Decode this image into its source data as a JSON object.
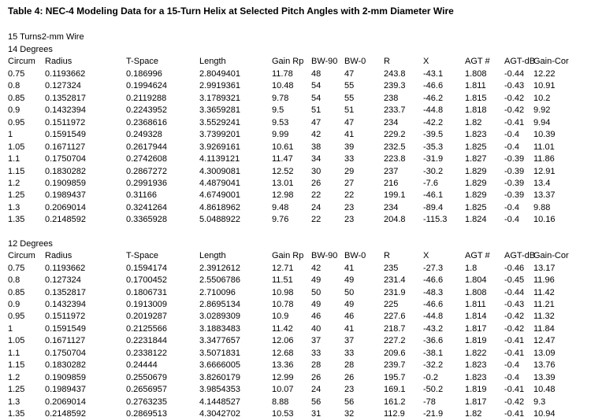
{
  "page": {
    "background_color": "#ffffff",
    "text_color": "#000000"
  },
  "document": {
    "title": "Table 4: NEC-4 Modeling Data for a 15-Turn Helix at Selected Pitch Angles with 2-mm Diameter Wire",
    "turns_label": "15 Turns",
    "wire_label": "2-mm Wire",
    "columns": [
      "Circum",
      "Radius",
      "T-Space",
      "Length",
      "Gain Rp",
      "BW-90",
      "BW-0",
      "R",
      "X",
      "AGT #",
      "AGT-dB",
      "Gain-Cor"
    ],
    "sections": [
      {
        "label": "14 Degrees",
        "rows": [
          [
            "0.75",
            "0.1193662",
            "0.186996",
            "2.8049401",
            "11.78",
            "48",
            "47",
            "243.8",
            "-43.1",
            "1.808",
            "-0.44",
            "12.22"
          ],
          [
            "0.8",
            "0.127324",
            "0.1994624",
            "2.9919361",
            "10.48",
            "54",
            "55",
            "239.3",
            "-46.6",
            "1.811",
            "-0.43",
            "10.91"
          ],
          [
            "0.85",
            "0.1352817",
            "0.2119288",
            "3.1789321",
            "9.78",
            "54",
            "55",
            "238",
            "-46.2",
            "1.815",
            "-0.42",
            "10.2"
          ],
          [
            "0.9",
            "0.1432394",
            "0.2243952",
            "3.3659281",
            "9.5",
            "51",
            "51",
            "233.7",
            "-44.8",
            "1.818",
            "-0.42",
            "9.92"
          ],
          [
            "0.95",
            "0.1511972",
            "0.2368616",
            "3.5529241",
            "9.53",
            "47",
            "47",
            "234",
            "-42.2",
            "1.82",
            "-0.41",
            "9.94"
          ],
          [
            "1",
            "0.1591549",
            "0.249328",
            "3.7399201",
            "9.99",
            "42",
            "41",
            "229.2",
            "-39.5",
            "1.823",
            "-0.4",
            "10.39"
          ],
          [
            "1.05",
            "0.1671127",
            "0.2617944",
            "3.9269161",
            "10.61",
            "38",
            "39",
            "232.5",
            "-35.3",
            "1.825",
            "-0.4",
            "11.01"
          ],
          [
            "1.1",
            "0.1750704",
            "0.2742608",
            "4.1139121",
            "11.47",
            "34",
            "33",
            "223.8",
            "-31.9",
            "1.827",
            "-0.39",
            "11.86"
          ],
          [
            "1.15",
            "0.1830282",
            "0.2867272",
            "4.3009081",
            "12.52",
            "30",
            "29",
            "237",
            "-30.2",
            "1.829",
            "-0.39",
            "12.91"
          ],
          [
            "1.2",
            "0.1909859",
            "0.2991936",
            "4.4879041",
            "13.01",
            "26",
            "27",
            "216",
            "-7.6",
            "1.829",
            "-0.39",
            "13.4"
          ],
          [
            "1.25",
            "0.1989437",
            "0.31166",
            "4.6749001",
            "12.98",
            "22",
            "22",
            "199.1",
            "-46.1",
            "1.829",
            "-0.39",
            "13.37"
          ],
          [
            "1.3",
            "0.2069014",
            "0.3241264",
            "4.8618962",
            "9.48",
            "24",
            "23",
            "234",
            "-89.4",
            "1.825",
            "-0.4",
            "9.88"
          ],
          [
            "1.35",
            "0.2148592",
            "0.3365928",
            "5.0488922",
            "9.76",
            "22",
            "23",
            "204.8",
            "-115.3",
            "1.824",
            "-0.4",
            "10.16"
          ]
        ]
      },
      {
        "label": "12 Degrees",
        "rows": [
          [
            "0.75",
            "0.1193662",
            "0.1594174",
            "2.3912612",
            "12.71",
            "42",
            "41",
            "235",
            "-27.3",
            "1.8",
            "-0.46",
            "13.17"
          ],
          [
            "0.8",
            "0.127324",
            "0.1700452",
            "2.5506786",
            "11.51",
            "49",
            "49",
            "231.4",
            "-46.6",
            "1.804",
            "-0.45",
            "11.96"
          ],
          [
            "0.85",
            "0.1352817",
            "0.1806731",
            "2.710096",
            "10.98",
            "50",
            "50",
            "231.9",
            "-48.3",
            "1.808",
            "-0.44",
            "11.42"
          ],
          [
            "0.9",
            "0.1432394",
            "0.1913009",
            "2.8695134",
            "10.78",
            "49",
            "49",
            "225",
            "-46.6",
            "1.811",
            "-0.43",
            "11.21"
          ],
          [
            "0.95",
            "0.1511972",
            "0.2019287",
            "3.0289309",
            "10.9",
            "46",
            "46",
            "227.6",
            "-44.8",
            "1.814",
            "-0.42",
            "11.32"
          ],
          [
            "1",
            "0.1591549",
            "0.2125566",
            "3.1883483",
            "11.42",
            "40",
            "41",
            "218.7",
            "-43.2",
            "1.817",
            "-0.42",
            "11.84"
          ],
          [
            "1.05",
            "0.1671127",
            "0.2231844",
            "3.3477657",
            "12.06",
            "37",
            "37",
            "227.2",
            "-36.6",
            "1.819",
            "-0.41",
            "12.47"
          ],
          [
            "1.1",
            "0.1750704",
            "0.2338122",
            "3.5071831",
            "12.68",
            "33",
            "33",
            "209.6",
            "-38.1",
            "1.822",
            "-0.41",
            "13.09"
          ],
          [
            "1.15",
            "0.1830282",
            "0.24444",
            "3.6666005",
            "13.36",
            "28",
            "28",
            "239.7",
            "-32.2",
            "1.823",
            "-0.4",
            "13.76"
          ],
          [
            "1.2",
            "0.1909859",
            "0.2550679",
            "3.8260179",
            "12.99",
            "26",
            "26",
            "195.7",
            "-0.2",
            "1.823",
            "-0.4",
            "13.39"
          ],
          [
            "1.25",
            "0.1989437",
            "0.2656957",
            "3.9854353",
            "10.07",
            "24",
            "23",
            "169.1",
            "-50.2",
            "1.819",
            "-0.41",
            "10.48"
          ],
          [
            "1.3",
            "0.2069014",
            "0.2763235",
            "4.1448527",
            "8.88",
            "56",
            "56",
            "161.2",
            "-78",
            "1.817",
            "-0.42",
            "9.3"
          ],
          [
            "1.35",
            "0.2148592",
            "0.2869513",
            "4.3042702",
            "10.53",
            "31",
            "32",
            "112.9",
            "-21.9",
            "1.82",
            "-0.41",
            "10.94"
          ]
        ]
      }
    ]
  }
}
